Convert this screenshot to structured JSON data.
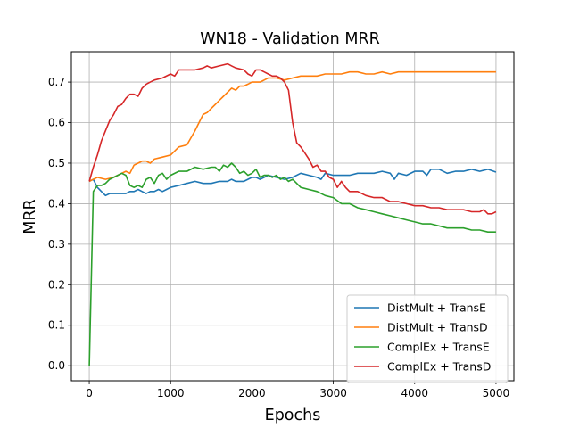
{
  "chart_data": {
    "type": "line",
    "title": "WN18 - Validation MRR",
    "xlabel": "Epochs",
    "ylabel": "MRR",
    "xlim": [
      -220,
      5220
    ],
    "ylim": [
      -0.037,
      0.775
    ],
    "xticks": [
      0,
      1000,
      2000,
      3000,
      4000,
      5000
    ],
    "xtick_labels": [
      "0",
      "1000",
      "2000",
      "3000",
      "4000",
      "5000"
    ],
    "yticks": [
      0.0,
      0.1,
      0.2,
      0.3,
      0.4,
      0.5,
      0.6,
      0.7
    ],
    "ytick_labels": [
      "0.0",
      "0.1",
      "0.2",
      "0.3",
      "0.4",
      "0.5",
      "0.6",
      "0.7"
    ],
    "grid": true,
    "legend_position": "lower-right",
    "series": [
      {
        "name": "DistMult + TransE",
        "color": "#1f77b4",
        "x": [
          0,
          50,
          100,
          150,
          200,
          250,
          300,
          350,
          400,
          450,
          500,
          550,
          600,
          650,
          700,
          750,
          800,
          850,
          900,
          950,
          1000,
          1100,
          1200,
          1300,
          1400,
          1500,
          1600,
          1700,
          1750,
          1800,
          1900,
          1950,
          2000,
          2050,
          2100,
          2150,
          2200,
          2300,
          2400,
          2500,
          2600,
          2700,
          2800,
          2850,
          2900,
          3000,
          3100,
          3200,
          3300,
          3400,
          3500,
          3600,
          3700,
          3750,
          3800,
          3900,
          4000,
          4100,
          4150,
          4200,
          4300,
          4400,
          4500,
          4600,
          4700,
          4800,
          4900,
          5000
        ],
        "values": [
          0.455,
          0.46,
          0.44,
          0.43,
          0.42,
          0.425,
          0.425,
          0.425,
          0.425,
          0.425,
          0.43,
          0.43,
          0.435,
          0.43,
          0.425,
          0.43,
          0.43,
          0.435,
          0.43,
          0.435,
          0.44,
          0.445,
          0.45,
          0.455,
          0.45,
          0.45,
          0.455,
          0.455,
          0.46,
          0.455,
          0.455,
          0.46,
          0.465,
          0.465,
          0.46,
          0.465,
          0.47,
          0.465,
          0.46,
          0.465,
          0.475,
          0.47,
          0.465,
          0.46,
          0.475,
          0.47,
          0.47,
          0.47,
          0.475,
          0.475,
          0.475,
          0.48,
          0.475,
          0.46,
          0.475,
          0.47,
          0.48,
          0.48,
          0.47,
          0.485,
          0.485,
          0.475,
          0.48,
          0.48,
          0.485,
          0.48,
          0.485,
          0.478
        ]
      },
      {
        "name": "DistMult + TransD",
        "color": "#ff7f0e",
        "x": [
          0,
          50,
          100,
          200,
          300,
          350,
          400,
          450,
          500,
          550,
          600,
          650,
          700,
          750,
          800,
          900,
          1000,
          1100,
          1200,
          1300,
          1350,
          1400,
          1450,
          1500,
          1550,
          1600,
          1650,
          1700,
          1750,
          1800,
          1850,
          1900,
          1950,
          2000,
          2100,
          2150,
          2200,
          2300,
          2400,
          2500,
          2600,
          2700,
          2800,
          2900,
          3000,
          3100,
          3200,
          3300,
          3400,
          3500,
          3600,
          3700,
          3800,
          4000,
          4200,
          4400,
          4600,
          4800,
          5000
        ],
        "values": [
          0.455,
          0.46,
          0.465,
          0.46,
          0.465,
          0.47,
          0.475,
          0.48,
          0.475,
          0.495,
          0.5,
          0.505,
          0.505,
          0.5,
          0.51,
          0.515,
          0.52,
          0.54,
          0.545,
          0.58,
          0.6,
          0.62,
          0.625,
          0.635,
          0.645,
          0.655,
          0.665,
          0.675,
          0.685,
          0.68,
          0.69,
          0.69,
          0.695,
          0.7,
          0.7,
          0.705,
          0.71,
          0.71,
          0.705,
          0.71,
          0.715,
          0.715,
          0.715,
          0.72,
          0.72,
          0.72,
          0.725,
          0.725,
          0.72,
          0.72,
          0.725,
          0.72,
          0.725,
          0.725,
          0.725,
          0.725,
          0.725,
          0.725,
          0.725
        ]
      },
      {
        "name": "ComplEx + TransE",
        "color": "#2ca02c",
        "x": [
          0,
          50,
          100,
          150,
          200,
          250,
          300,
          350,
          400,
          450,
          500,
          550,
          600,
          650,
          700,
          750,
          800,
          850,
          900,
          950,
          1000,
          1100,
          1200,
          1300,
          1400,
          1500,
          1550,
          1600,
          1650,
          1700,
          1750,
          1800,
          1850,
          1900,
          1950,
          2000,
          2050,
          2100,
          2150,
          2200,
          2250,
          2300,
          2350,
          2400,
          2450,
          2500,
          2600,
          2700,
          2800,
          2900,
          3000,
          3100,
          3200,
          3300,
          3400,
          3500,
          3600,
          3700,
          3800,
          3900,
          4000,
          4100,
          4200,
          4300,
          4400,
          4500,
          4600,
          4700,
          4800,
          4900,
          5000
        ],
        "values": [
          0.0,
          0.43,
          0.445,
          0.445,
          0.45,
          0.46,
          0.465,
          0.47,
          0.475,
          0.47,
          0.445,
          0.44,
          0.445,
          0.44,
          0.46,
          0.465,
          0.45,
          0.47,
          0.475,
          0.46,
          0.47,
          0.48,
          0.48,
          0.49,
          0.485,
          0.49,
          0.49,
          0.48,
          0.495,
          0.49,
          0.5,
          0.49,
          0.475,
          0.48,
          0.47,
          0.475,
          0.485,
          0.465,
          0.47,
          0.47,
          0.465,
          0.47,
          0.46,
          0.465,
          0.455,
          0.46,
          0.44,
          0.435,
          0.43,
          0.42,
          0.415,
          0.4,
          0.4,
          0.39,
          0.385,
          0.38,
          0.375,
          0.37,
          0.365,
          0.36,
          0.355,
          0.35,
          0.35,
          0.345,
          0.34,
          0.34,
          0.34,
          0.335,
          0.335,
          0.33,
          0.33
        ]
      },
      {
        "name": "ComplEx + TransD",
        "color": "#d62728",
        "x": [
          0,
          50,
          100,
          150,
          200,
          250,
          300,
          350,
          400,
          450,
          500,
          550,
          600,
          650,
          700,
          750,
          800,
          900,
          1000,
          1050,
          1100,
          1200,
          1300,
          1400,
          1450,
          1500,
          1600,
          1700,
          1750,
          1800,
          1900,
          1950,
          2000,
          2050,
          2100,
          2150,
          2200,
          2250,
          2300,
          2350,
          2400,
          2450,
          2500,
          2550,
          2600,
          2650,
          2700,
          2750,
          2800,
          2850,
          2900,
          2950,
          3000,
          3050,
          3100,
          3150,
          3200,
          3300,
          3400,
          3500,
          3600,
          3700,
          3800,
          3900,
          4000,
          4100,
          4200,
          4300,
          4400,
          4500,
          4600,
          4700,
          4800,
          4850,
          4900,
          4950,
          5000
        ],
        "values": [
          0.455,
          0.49,
          0.52,
          0.555,
          0.58,
          0.605,
          0.62,
          0.64,
          0.645,
          0.66,
          0.67,
          0.67,
          0.665,
          0.685,
          0.695,
          0.7,
          0.705,
          0.71,
          0.72,
          0.715,
          0.73,
          0.73,
          0.73,
          0.735,
          0.74,
          0.735,
          0.74,
          0.745,
          0.74,
          0.735,
          0.73,
          0.72,
          0.715,
          0.73,
          0.73,
          0.725,
          0.72,
          0.715,
          0.715,
          0.71,
          0.7,
          0.68,
          0.6,
          0.55,
          0.54,
          0.525,
          0.51,
          0.49,
          0.495,
          0.48,
          0.48,
          0.465,
          0.46,
          0.44,
          0.455,
          0.44,
          0.43,
          0.43,
          0.42,
          0.415,
          0.415,
          0.405,
          0.405,
          0.4,
          0.395,
          0.395,
          0.39,
          0.39,
          0.385,
          0.385,
          0.385,
          0.38,
          0.38,
          0.385,
          0.375,
          0.375,
          0.38
        ]
      }
    ]
  }
}
